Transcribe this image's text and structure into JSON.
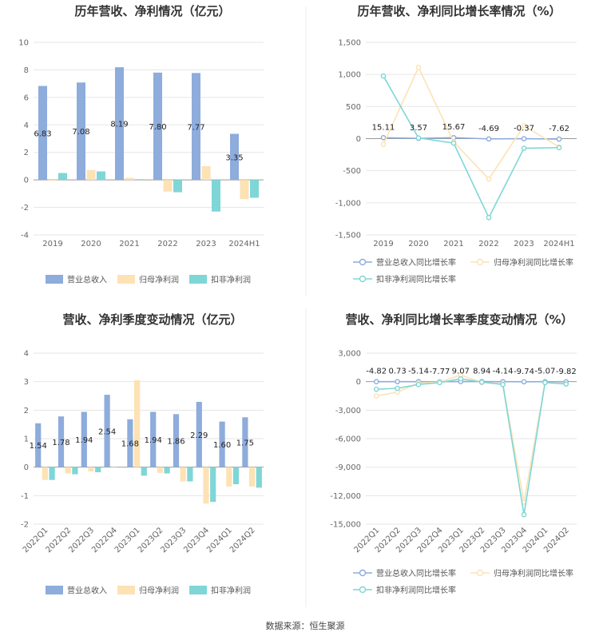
{
  "footer": {
    "source": "数据来源：恒生聚源"
  },
  "colors": {
    "revenue": "#8eacdc",
    "net_profit": "#fde2b4",
    "deducted_profit": "#7fd6d6",
    "axis": "#999999",
    "grid": "#e6e6e6"
  },
  "chart_data": [
    {
      "id": "annual-amounts",
      "type": "bar",
      "title": "历年营收、净利情况（亿元）",
      "categories": [
        "2019",
        "2020",
        "2021",
        "2022",
        "2023",
        "2024H1"
      ],
      "ylim": [
        -4,
        10
      ],
      "yticks": [
        -4,
        -2,
        0,
        2,
        4,
        6,
        8,
        10
      ],
      "ytick_labels": [
        "-4",
        "-2",
        "0",
        "2",
        "4",
        "6",
        "8",
        "10"
      ],
      "series": [
        {
          "name": "营业总收入",
          "values": [
            6.83,
            7.08,
            8.19,
            7.8,
            7.77,
            3.35
          ],
          "labels": [
            "6.83",
            "7.08",
            "8.19",
            "7.80",
            "7.77",
            "3.35"
          ]
        },
        {
          "name": "归母净利润",
          "values": [
            -0.05,
            0.72,
            0.15,
            -0.85,
            1.0,
            -1.4
          ]
        },
        {
          "name": "扣非净利润",
          "values": [
            0.5,
            0.62,
            0.05,
            -0.9,
            -2.3,
            -1.3
          ]
        }
      ],
      "grid": true,
      "legend": "bottom"
    },
    {
      "id": "annual-growth",
      "type": "line",
      "title": "历年营收、净利同比增长率情况（%）",
      "categories": [
        "2019",
        "2020",
        "2021",
        "2022",
        "2023",
        "2024H1"
      ],
      "ylim": [
        -1500,
        1500
      ],
      "yticks": [
        -1500,
        -1000,
        -500,
        0,
        500,
        1000,
        1500
      ],
      "ytick_labels": [
        "-1,500",
        "-1,000",
        "-500",
        "0",
        "500",
        "1,000",
        "1,500"
      ],
      "series": [
        {
          "name": "营业总收入同比增长率",
          "values": [
            15.11,
            3.57,
            15.67,
            -4.69,
            -0.37,
            -7.62
          ],
          "labels": [
            "15.11",
            "3.57",
            "15.67",
            "-4.69",
            "-0.37",
            "-7.62"
          ]
        },
        {
          "name": "归母净利润同比增长率",
          "values": [
            -90,
            1110,
            -50,
            -630,
            200,
            -130
          ]
        },
        {
          "name": "扣非净利润同比增长率",
          "values": [
            975,
            10,
            -70,
            -1230,
            -150,
            -140
          ]
        }
      ],
      "grid": true,
      "legend": "bottom"
    },
    {
      "id": "quarterly-amounts",
      "type": "bar",
      "title": "营收、净利季度变动情况（亿元）",
      "categories": [
        "2022Q1",
        "2022Q2",
        "2022Q3",
        "2022Q4",
        "2023Q1",
        "2023Q2",
        "2023Q3",
        "2023Q4",
        "2024Q1",
        "2024Q2"
      ],
      "ylim": [
        -2,
        4
      ],
      "yticks": [
        -2,
        -1,
        0,
        1,
        2,
        3,
        4
      ],
      "ytick_labels": [
        "-2",
        "-1",
        "0",
        "1",
        "2",
        "3",
        "4"
      ],
      "series": [
        {
          "name": "营业总收入",
          "values": [
            1.54,
            1.78,
            1.94,
            2.54,
            1.68,
            1.94,
            1.86,
            2.29,
            1.6,
            1.75
          ],
          "labels": [
            "1.54",
            "1.78",
            "1.94",
            "2.54",
            "1.68",
            "1.94",
            "1.86",
            "2.29",
            "1.60",
            "1.75"
          ]
        },
        {
          "name": "归母净利润",
          "values": [
            -0.45,
            -0.22,
            -0.15,
            0.0,
            3.05,
            -0.2,
            -0.5,
            -1.28,
            -0.68,
            -0.68
          ]
        },
        {
          "name": "扣非净利润",
          "values": [
            -0.45,
            -0.25,
            -0.18,
            0.0,
            -0.3,
            -0.22,
            -0.5,
            -1.22,
            -0.6,
            -0.72
          ]
        }
      ],
      "grid": true,
      "legend": "bottom"
    },
    {
      "id": "quarterly-growth",
      "type": "line",
      "title": "营收、净利同比增长率季度变动情况（%）",
      "categories": [
        "2022Q1",
        "2022Q2",
        "2022Q3",
        "2022Q4",
        "2023Q1",
        "2023Q2",
        "2023Q3",
        "2023Q4",
        "2024Q1",
        "2024Q2"
      ],
      "ylim": [
        -15000,
        3000
      ],
      "yticks": [
        -15000,
        -12000,
        -9000,
        -6000,
        -3000,
        0,
        3000
      ],
      "ytick_labels": [
        "-15,000",
        "-12,000",
        "-9,000",
        "-6,000",
        "-3,000",
        "0",
        "3,000"
      ],
      "series": [
        {
          "name": "营业总收入同比增长率",
          "values": [
            -4.82,
            0.73,
            -5.14,
            -7.77,
            9.07,
            8.94,
            -4.14,
            -9.74,
            -5.07,
            -9.82
          ],
          "labels": [
            "-4.82",
            "0.73",
            "-5.14",
            "-7.77",
            "9.07",
            "8.94",
            "-4.14",
            "-9.74",
            "-5.07",
            "-9.82"
          ]
        },
        {
          "name": "归母净利润同比增长率",
          "values": [
            -1500,
            -1100,
            -150,
            -50,
            700,
            -100,
            -200,
            -12700,
            -100,
            -200
          ]
        },
        {
          "name": "扣非净利润同比增长率",
          "values": [
            -800,
            -700,
            -300,
            -100,
            300,
            -50,
            -300,
            -14000,
            -100,
            -250
          ]
        }
      ],
      "grid": true,
      "legend": "bottom"
    }
  ]
}
